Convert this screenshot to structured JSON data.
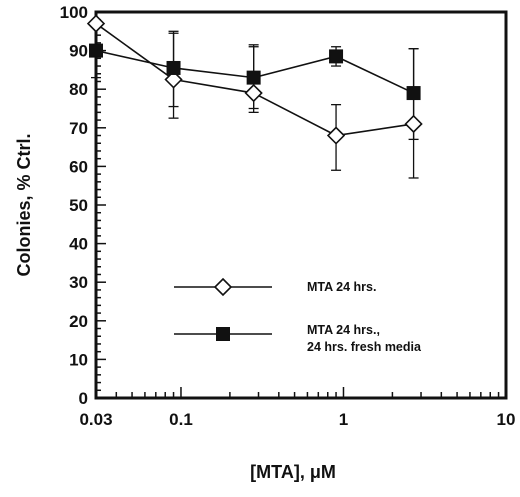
{
  "chart_data": {
    "type": "line",
    "xlabel": "[MTA], μM",
    "ylabel": "Colonies, % Ctrl.",
    "xscale": "log",
    "xlim": [
      0.03,
      10
    ],
    "ylim": [
      0,
      100
    ],
    "grid": false,
    "legend_position": "lower-center",
    "xticks": [
      {
        "value": 0.03,
        "label": "0.03"
      },
      {
        "value": 0.1,
        "label": "0.1"
      },
      {
        "value": 1,
        "label": "1"
      },
      {
        "value": 10,
        "label": "10"
      }
    ],
    "yticks": [
      0,
      10,
      20,
      30,
      40,
      50,
      60,
      70,
      80,
      90,
      100
    ],
    "series": [
      {
        "name": "MTA 24 hrs.",
        "marker": "diamond-open",
        "x": [
          0.03,
          0.09,
          0.28,
          0.9,
          2.7
        ],
        "y": [
          97,
          82.5,
          79,
          68,
          71
        ],
        "err_low": [
          null,
          10,
          5,
          9,
          14
        ],
        "err_high": [
          null,
          12,
          12,
          8,
          19.5
        ]
      },
      {
        "name": "MTA 24 hrs.,\n24 hrs. fresh media",
        "legend_lines": [
          "MTA 24 hrs.,",
          "24 hrs. fresh media"
        ],
        "marker": "square-filled",
        "x": [
          0.03,
          0.09,
          0.28,
          0.9,
          2.7
        ],
        "y": [
          90,
          85.5,
          83,
          88.5,
          79
        ],
        "err_low": [
          7,
          10,
          8,
          2.5,
          12
        ],
        "err_high": [
          0,
          9.5,
          8.5,
          2.5,
          11.5
        ]
      }
    ]
  }
}
